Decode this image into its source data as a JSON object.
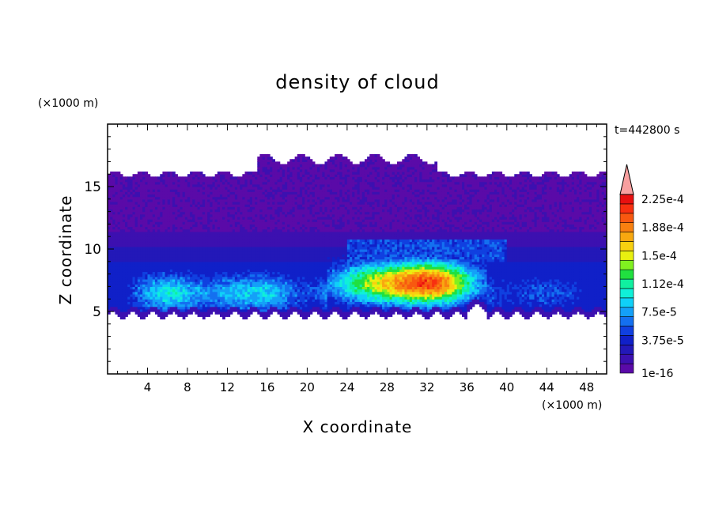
{
  "chart_data": {
    "type": "heatmap",
    "title": "density of cloud",
    "xlabel": "X coordinate",
    "ylabel": "Z coordinate",
    "x_unit": "(×1000 m)",
    "y_unit": "(×1000 m)",
    "time_label": "t=442800 s",
    "xlim": [
      0,
      50
    ],
    "ylim": [
      0,
      20
    ],
    "x_ticks": [
      4,
      8,
      12,
      16,
      20,
      24,
      28,
      32,
      36,
      40,
      44,
      48
    ],
    "y_ticks": [
      5,
      10,
      15
    ],
    "colorbar": {
      "extend": "max",
      "labels": [
        "1e-16",
        "3.75e-5",
        "7.5e-5",
        "1.12e-4",
        "1.5e-4",
        "1.88e-4",
        "2.25e-4"
      ],
      "levels": [
        {
          "value": 1e-16,
          "color": "#5a0aa8"
        },
        {
          "value": 1.25e-05,
          "color": "#3c10b0"
        },
        {
          "value": 2.5e-05,
          "color": "#2318b8"
        },
        {
          "value": 3.75e-05,
          "color": "#1020c8"
        },
        {
          "value": 5e-05,
          "color": "#1040e0"
        },
        {
          "value": 6.25e-05,
          "color": "#1470f0"
        },
        {
          "value": 7.5e-05,
          "color": "#14a0f8"
        },
        {
          "value": 8.75e-05,
          "color": "#10d0f8"
        },
        {
          "value": 0.0001,
          "color": "#10f0d8"
        },
        {
          "value": 0.000112,
          "color": "#10f0a0"
        },
        {
          "value": 0.000125,
          "color": "#20e040"
        },
        {
          "value": 0.000138,
          "color": "#80f020"
        },
        {
          "value": 0.00015,
          "color": "#e8f010"
        },
        {
          "value": 0.000162,
          "color": "#f8d010"
        },
        {
          "value": 0.000175,
          "color": "#f8a810"
        },
        {
          "value": 0.000188,
          "color": "#f88010"
        },
        {
          "value": 0.0002,
          "color": "#f85810"
        },
        {
          "value": 0.000212,
          "color": "#f83010"
        },
        {
          "value": 0.000225,
          "color": "#e81010"
        }
      ],
      "extend_color": "#f8a0a0"
    },
    "field": {
      "cloud_base_km": 5,
      "cloud_top_km": 16,
      "core_heights_km": [
        6.5,
        7.5
      ],
      "max_core_x_km": [
        6,
        16,
        27,
        33
      ]
    }
  }
}
